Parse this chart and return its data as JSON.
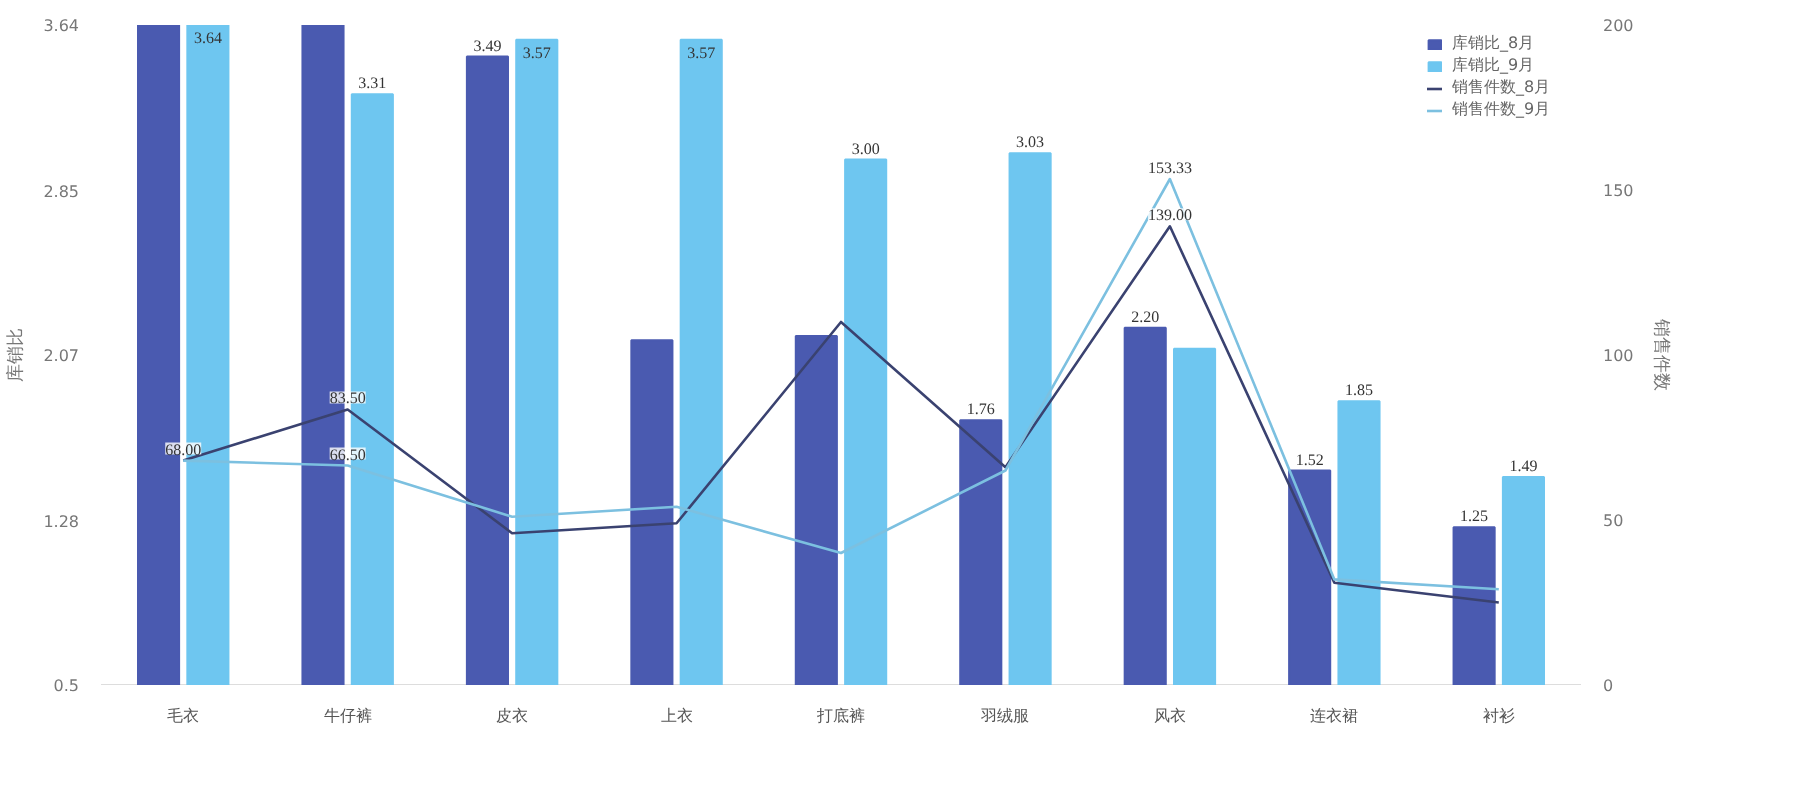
{
  "chart_data": {
    "type": "bar",
    "categories": [
      "毛衣",
      "牛仔裤",
      "皮衣",
      "上衣",
      "打底裤",
      "羽绒服",
      "风衣",
      "连衣裙",
      "衬衫"
    ],
    "ylabel": "库销比",
    "y2label": "销售件数",
    "series": [
      {
        "name": "库销比_8月",
        "color": "#4a5ab0",
        "values": [
          3.64,
          3.64,
          3.49,
          2.14,
          2.16,
          1.76,
          2.2,
          1.52,
          1.25
        ],
        "value_labels": [
          null,
          null,
          "3.49",
          null,
          null,
          "1.76",
          "2.20",
          "1.52",
          "1.25"
        ]
      },
      {
        "name": "库销比_9月",
        "color": "#6ec6f0",
        "values": [
          3.64,
          3.31,
          3.57,
          3.57,
          3.0,
          3.03,
          2.1,
          1.85,
          1.49
        ],
        "value_labels": [
          "3.64",
          "3.31",
          "3.57",
          "3.57",
          "3.00",
          "3.03",
          null,
          "1.85",
          "1.49"
        ]
      },
      {
        "name": "销售件数_8月",
        "type": "line",
        "axis": "y2",
        "color": "#3a4270",
        "values": [
          68,
          83.5,
          46,
          49,
          110,
          66,
          139,
          31,
          25
        ],
        "value_labels": [
          "68.00",
          "83.50",
          null,
          null,
          null,
          null,
          "139.00",
          null,
          null
        ]
      },
      {
        "name": "销售件数_9月",
        "type": "line",
        "axis": "y2",
        "color": "#7cc0e0",
        "values": [
          68,
          66.5,
          51,
          54,
          40,
          65,
          153.33,
          32,
          29
        ],
        "value_labels": [
          null,
          "66.50",
          null,
          null,
          null,
          null,
          "153.33",
          null,
          null
        ]
      }
    ],
    "ylim": [
      0.5,
      3.64
    ],
    "yticks": [
      0.5,
      1.28,
      2.07,
      2.85,
      3.64
    ],
    "y2lim": [
      0,
      200
    ],
    "y2ticks": [
      0,
      50,
      100,
      150,
      200
    ],
    "grid": false,
    "legend": "top right"
  }
}
